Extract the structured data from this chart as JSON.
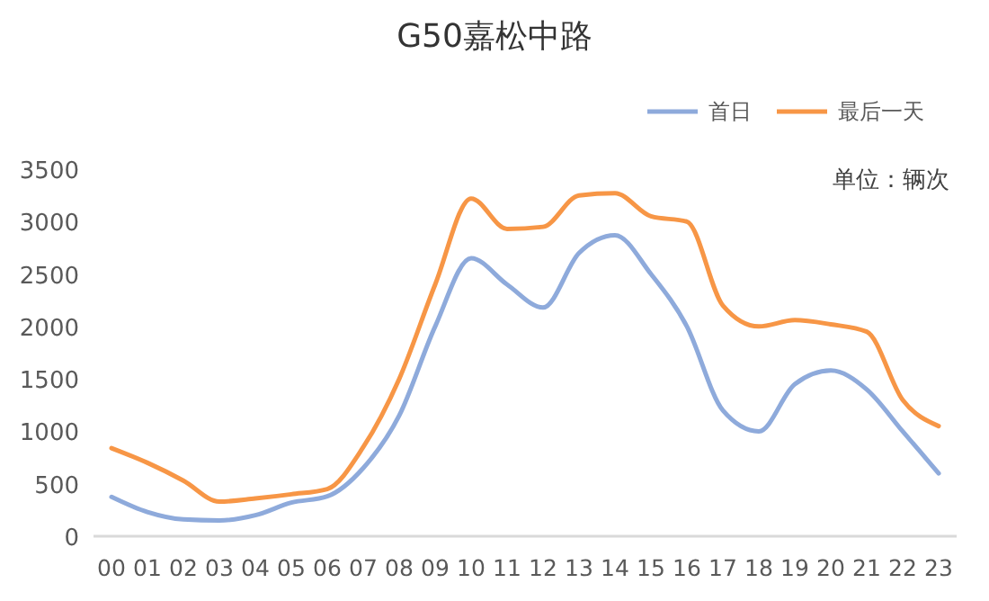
{
  "chart_data": {
    "type": "line",
    "title": "G50嘉松中路",
    "annotations": [
      "单位：辆次"
    ],
    "categories": [
      "00",
      "01",
      "02",
      "03",
      "04",
      "05",
      "06",
      "07",
      "08",
      "09",
      "10",
      "11",
      "12",
      "13",
      "14",
      "15",
      "16",
      "17",
      "18",
      "19",
      "20",
      "21",
      "22",
      "23"
    ],
    "series": [
      {
        "name": "首日",
        "color": "#8eaadb",
        "values": [
          375,
          230,
          160,
          150,
          200,
          320,
          380,
          650,
          1150,
          2000,
          2650,
          2400,
          2180,
          2700,
          2870,
          2500,
          2000,
          1200,
          1000,
          1450,
          1580,
          1400,
          1000,
          600
        ]
      },
      {
        "name": "最后一天",
        "color": "#f79646",
        "values": [
          840,
          700,
          530,
          330,
          360,
          400,
          450,
          850,
          1500,
          2400,
          3220,
          2930,
          2950,
          3250,
          3270,
          3050,
          3000,
          2200,
          2000,
          2060,
          2020,
          1950,
          1300,
          1050
        ]
      }
    ],
    "ylim": [
      0,
      3500
    ],
    "yticks": [
      0,
      500,
      1000,
      1500,
      2000,
      2500,
      3000,
      3500
    ],
    "grid": false,
    "legend": "top right",
    "marker": "none",
    "line_style": "solid"
  }
}
